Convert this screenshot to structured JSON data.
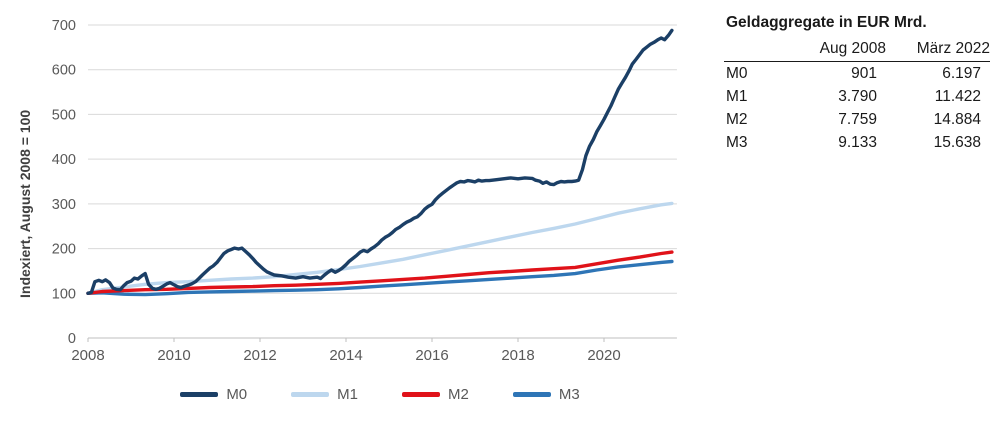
{
  "chart_data": {
    "type": "line",
    "title": "",
    "xlabel": "",
    "ylabel": "Indexiert, August 2008 = 100",
    "x_range": [
      2008.67,
      2022.25
    ],
    "ylim": [
      0,
      700
    ],
    "y_ticks": [
      0,
      100,
      200,
      300,
      400,
      500,
      600,
      700
    ],
    "x_ticks": [
      2008,
      2010,
      2012,
      2014,
      2016,
      2018,
      2020
    ],
    "grid": true,
    "legend_position": "bottom",
    "series": [
      {
        "name": "M1",
        "color": "#BDD7EE",
        "points": [
          [
            2008.67,
            100
          ],
          [
            2009,
            108
          ],
          [
            2009.5,
            114
          ],
          [
            2010,
            120
          ],
          [
            2010.5,
            124
          ],
          [
            2011,
            126
          ],
          [
            2011.5,
            129
          ],
          [
            2012,
            132
          ],
          [
            2012.5,
            134
          ],
          [
            2013,
            137
          ],
          [
            2013.5,
            142
          ],
          [
            2014,
            147
          ],
          [
            2014.5,
            153
          ],
          [
            2015,
            160
          ],
          [
            2015.5,
            168
          ],
          [
            2016,
            176
          ],
          [
            2016.5,
            186
          ],
          [
            2017,
            196
          ],
          [
            2017.5,
            206
          ],
          [
            2018,
            216
          ],
          [
            2018.5,
            226
          ],
          [
            2019,
            236
          ],
          [
            2019.5,
            245
          ],
          [
            2020,
            255
          ],
          [
            2020.5,
            267
          ],
          [
            2021,
            279
          ],
          [
            2021.5,
            289
          ],
          [
            2022,
            298
          ],
          [
            2022.25,
            301
          ]
        ]
      },
      {
        "name": "M3",
        "color": "#2E75B6",
        "points": [
          [
            2008.67,
            100
          ],
          [
            2009,
            101
          ],
          [
            2009.5,
            98
          ],
          [
            2010,
            97
          ],
          [
            2010.5,
            99
          ],
          [
            2011,
            102
          ],
          [
            2011.5,
            103
          ],
          [
            2012,
            104
          ],
          [
            2012.5,
            105
          ],
          [
            2013,
            106
          ],
          [
            2013.5,
            107
          ],
          [
            2014,
            108
          ],
          [
            2014.5,
            110
          ],
          [
            2015,
            113
          ],
          [
            2015.5,
            116
          ],
          [
            2016,
            119
          ],
          [
            2016.5,
            122
          ],
          [
            2017,
            125
          ],
          [
            2017.5,
            128
          ],
          [
            2018,
            131
          ],
          [
            2018.5,
            134
          ],
          [
            2019,
            137
          ],
          [
            2019.5,
            140
          ],
          [
            2020,
            144
          ],
          [
            2020.5,
            152
          ],
          [
            2021,
            159
          ],
          [
            2021.5,
            164
          ],
          [
            2022,
            169
          ],
          [
            2022.25,
            171
          ]
        ]
      },
      {
        "name": "M2",
        "color": "#E01219",
        "points": [
          [
            2008.67,
            100
          ],
          [
            2009,
            104
          ],
          [
            2009.5,
            106
          ],
          [
            2010,
            108
          ],
          [
            2010.5,
            109
          ],
          [
            2011,
            111
          ],
          [
            2011.5,
            113
          ],
          [
            2012,
            114
          ],
          [
            2012.5,
            115
          ],
          [
            2013,
            117
          ],
          [
            2013.5,
            118
          ],
          [
            2014,
            120
          ],
          [
            2014.5,
            122
          ],
          [
            2015,
            125
          ],
          [
            2015.5,
            128
          ],
          [
            2016,
            131
          ],
          [
            2016.5,
            134
          ],
          [
            2017,
            138
          ],
          [
            2017.5,
            142
          ],
          [
            2018,
            146
          ],
          [
            2018.5,
            149
          ],
          [
            2019,
            152
          ],
          [
            2019.5,
            155
          ],
          [
            2020,
            158
          ],
          [
            2020.5,
            166
          ],
          [
            2021,
            174
          ],
          [
            2021.5,
            181
          ],
          [
            2022,
            189
          ],
          [
            2022.25,
            192
          ]
        ]
      },
      {
        "name": "M0",
        "color": "#1B3F66",
        "points": [
          [
            2008.67,
            100
          ],
          [
            2008.75,
            102
          ],
          [
            2008.83,
            126
          ],
          [
            2008.92,
            129
          ],
          [
            2009.0,
            126
          ],
          [
            2009.08,
            130
          ],
          [
            2009.17,
            124
          ],
          [
            2009.25,
            112
          ],
          [
            2009.33,
            109
          ],
          [
            2009.42,
            108
          ],
          [
            2009.5,
            117
          ],
          [
            2009.58,
            124
          ],
          [
            2009.67,
            127
          ],
          [
            2009.75,
            134
          ],
          [
            2009.83,
            132
          ],
          [
            2009.92,
            139
          ],
          [
            2010.0,
            144
          ],
          [
            2010.08,
            120
          ],
          [
            2010.17,
            111
          ],
          [
            2010.25,
            109
          ],
          [
            2010.33,
            111
          ],
          [
            2010.42,
            116
          ],
          [
            2010.5,
            121
          ],
          [
            2010.58,
            124
          ],
          [
            2010.67,
            119
          ],
          [
            2010.75,
            115
          ],
          [
            2010.83,
            113
          ],
          [
            2010.92,
            116
          ],
          [
            2011.0,
            118
          ],
          [
            2011.08,
            121
          ],
          [
            2011.17,
            126
          ],
          [
            2011.25,
            133
          ],
          [
            2011.33,
            141
          ],
          [
            2011.42,
            149
          ],
          [
            2011.5,
            156
          ],
          [
            2011.58,
            161
          ],
          [
            2011.67,
            169
          ],
          [
            2011.75,
            179
          ],
          [
            2011.83,
            189
          ],
          [
            2011.92,
            195
          ],
          [
            2012.0,
            198
          ],
          [
            2012.08,
            201
          ],
          [
            2012.17,
            199
          ],
          [
            2012.25,
            201
          ],
          [
            2012.33,
            194
          ],
          [
            2012.42,
            186
          ],
          [
            2012.5,
            178
          ],
          [
            2012.58,
            169
          ],
          [
            2012.67,
            161
          ],
          [
            2012.75,
            154
          ],
          [
            2012.83,
            148
          ],
          [
            2012.92,
            144
          ],
          [
            2013.0,
            141
          ],
          [
            2013.17,
            139
          ],
          [
            2013.33,
            136
          ],
          [
            2013.5,
            134
          ],
          [
            2013.67,
            137
          ],
          [
            2013.83,
            134
          ],
          [
            2014.0,
            136
          ],
          [
            2014.08,
            133
          ],
          [
            2014.17,
            141
          ],
          [
            2014.25,
            147
          ],
          [
            2014.33,
            152
          ],
          [
            2014.42,
            147
          ],
          [
            2014.5,
            151
          ],
          [
            2014.58,
            156
          ],
          [
            2014.67,
            164
          ],
          [
            2014.75,
            172
          ],
          [
            2014.83,
            178
          ],
          [
            2014.92,
            185
          ],
          [
            2015.0,
            192
          ],
          [
            2015.08,
            196
          ],
          [
            2015.17,
            193
          ],
          [
            2015.25,
            199
          ],
          [
            2015.33,
            204
          ],
          [
            2015.42,
            211
          ],
          [
            2015.5,
            219
          ],
          [
            2015.58,
            225
          ],
          [
            2015.67,
            230
          ],
          [
            2015.75,
            236
          ],
          [
            2015.83,
            243
          ],
          [
            2015.92,
            248
          ],
          [
            2016.0,
            254
          ],
          [
            2016.08,
            259
          ],
          [
            2016.17,
            263
          ],
          [
            2016.25,
            268
          ],
          [
            2016.33,
            271
          ],
          [
            2016.42,
            279
          ],
          [
            2016.5,
            288
          ],
          [
            2016.58,
            294
          ],
          [
            2016.67,
            299
          ],
          [
            2016.75,
            309
          ],
          [
            2016.83,
            317
          ],
          [
            2016.92,
            324
          ],
          [
            2017.0,
            330
          ],
          [
            2017.08,
            336
          ],
          [
            2017.17,
            342
          ],
          [
            2017.25,
            347
          ],
          [
            2017.33,
            350
          ],
          [
            2017.42,
            349
          ],
          [
            2017.5,
            352
          ],
          [
            2017.58,
            351
          ],
          [
            2017.67,
            349
          ],
          [
            2017.75,
            353
          ],
          [
            2017.83,
            351
          ],
          [
            2017.92,
            352
          ],
          [
            2018.0,
            352
          ],
          [
            2018.17,
            354
          ],
          [
            2018.33,
            356
          ],
          [
            2018.5,
            358
          ],
          [
            2018.67,
            356
          ],
          [
            2018.83,
            358
          ],
          [
            2019.0,
            357
          ],
          [
            2019.08,
            353
          ],
          [
            2019.17,
            351
          ],
          [
            2019.25,
            346
          ],
          [
            2019.33,
            349
          ],
          [
            2019.42,
            344
          ],
          [
            2019.5,
            343
          ],
          [
            2019.58,
            347
          ],
          [
            2019.67,
            350
          ],
          [
            2019.75,
            349
          ],
          [
            2019.83,
            350
          ],
          [
            2019.92,
            350
          ],
          [
            2020.0,
            351
          ],
          [
            2020.08,
            353
          ],
          [
            2020.17,
            377
          ],
          [
            2020.25,
            408
          ],
          [
            2020.33,
            428
          ],
          [
            2020.42,
            444
          ],
          [
            2020.5,
            461
          ],
          [
            2020.58,
            474
          ],
          [
            2020.67,
            489
          ],
          [
            2020.75,
            504
          ],
          [
            2020.83,
            519
          ],
          [
            2020.92,
            539
          ],
          [
            2021.0,
            556
          ],
          [
            2021.08,
            569
          ],
          [
            2021.17,
            583
          ],
          [
            2021.25,
            597
          ],
          [
            2021.33,
            613
          ],
          [
            2021.42,
            624
          ],
          [
            2021.5,
            634
          ],
          [
            2021.58,
            644
          ],
          [
            2021.67,
            651
          ],
          [
            2021.75,
            657
          ],
          [
            2021.83,
            661
          ],
          [
            2021.92,
            667
          ],
          [
            2022.0,
            671
          ],
          [
            2022.08,
            667
          ],
          [
            2022.17,
            677
          ],
          [
            2022.25,
            688
          ]
        ]
      }
    ]
  },
  "legend": {
    "items": [
      {
        "label": "M0",
        "color": "#1B3F66"
      },
      {
        "label": "M1",
        "color": "#BDD7EE"
      },
      {
        "label": "M2",
        "color": "#E01219"
      },
      {
        "label": "M3",
        "color": "#2E75B6"
      }
    ]
  },
  "table": {
    "title": "Geldaggregate in EUR Mrd.",
    "columns": [
      "",
      "Aug 2008",
      "März 2022"
    ],
    "rows": [
      {
        "label": "M0",
        "aug_2008": "901",
        "maerz_2022": "6.197"
      },
      {
        "label": "M1",
        "aug_2008": "3.790",
        "maerz_2022": "11.422"
      },
      {
        "label": "M2",
        "aug_2008": "7.759",
        "maerz_2022": "14.884"
      },
      {
        "label": "M3",
        "aug_2008": "9.133",
        "maerz_2022": "15.638"
      }
    ]
  },
  "style": {
    "gridline_color": "#D9D9D9",
    "axis_color": "#BFBFBF",
    "tick_label_color": "#595959",
    "axis_title_color": "#404040"
  }
}
